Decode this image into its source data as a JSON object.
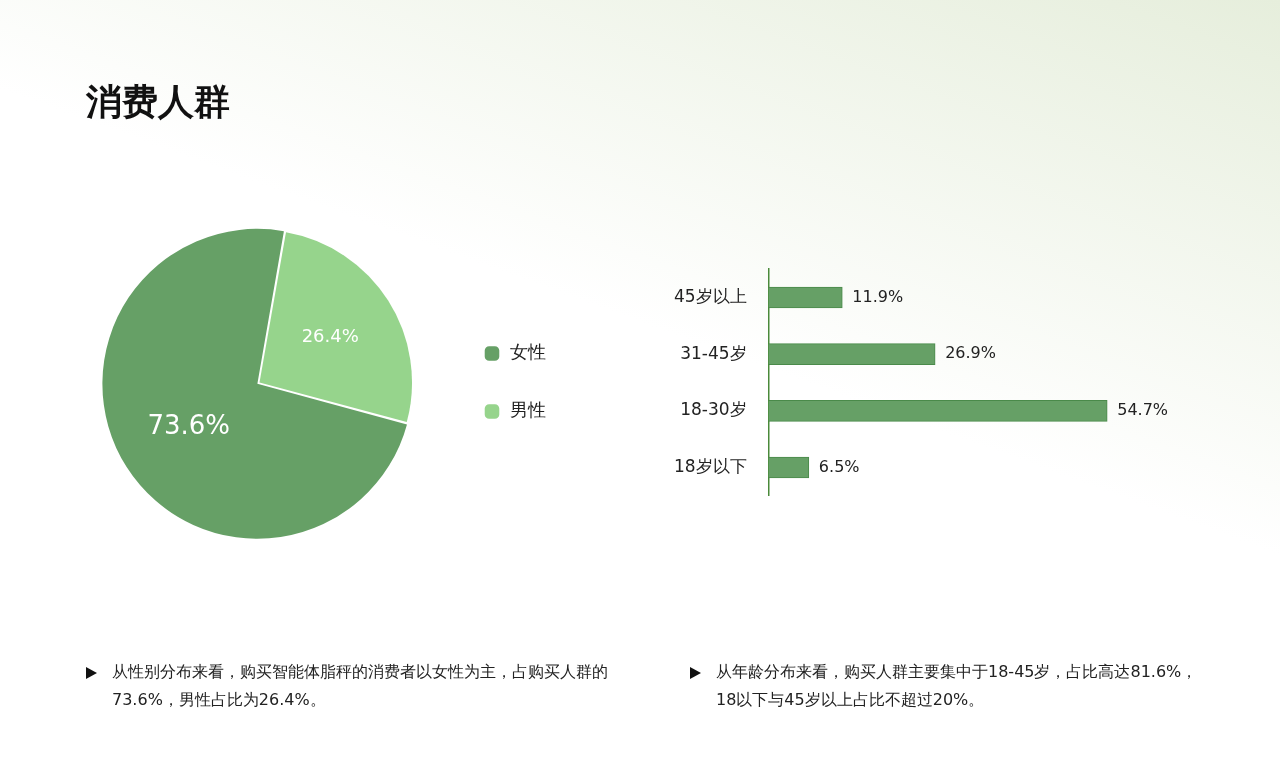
{
  "chart_data": [
    {
      "type": "pie",
      "title": "消费人群",
      "categories": [
        "女性",
        "男性"
      ],
      "values": [
        73.6,
        26.4
      ],
      "colors": [
        "#66a066",
        "#96d48c"
      ],
      "value_labels": [
        "73.6%",
        "26.4%"
      ],
      "legend": "right",
      "annotations": [
        "从性别分布来看，购买智能体脂秤的消费者以女性为主，占购买人群的73.6%，男性占比为26.4%。"
      ]
    },
    {
      "type": "bar",
      "orientation": "horizontal",
      "categories": [
        "45岁以上",
        "31-45岁",
        "18-30岁",
        "18岁以下"
      ],
      "values": [
        11.9,
        26.9,
        54.7,
        6.5
      ],
      "color": "#66a066",
      "value_labels": [
        "11.9%",
        "26.9%",
        "54.7%",
        "6.5%"
      ],
      "grid": false,
      "annotations": [
        "从年龄分布来看，购买人群主要集中于18-45岁，占比高达81.6%，18以下与45岁以上占比不超过20%。"
      ]
    }
  ]
}
